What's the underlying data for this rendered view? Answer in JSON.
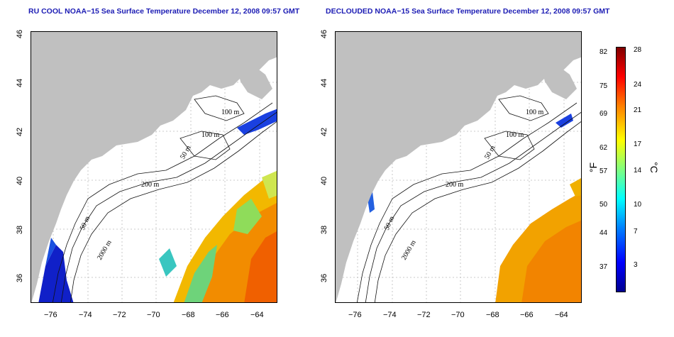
{
  "left_panel": {
    "title": "RU COOL NOAA−15 Sea Surface Temperature December 12, 2008 09:57 GMT",
    "labels": [
      "100 m",
      "100 m",
      "50 m",
      "200 m",
      "50 m",
      "2000 m"
    ]
  },
  "right_panel": {
    "title": "DECLOUDED NOAA−15 Sea Surface Temperature December 12, 2008 09:57 GMT",
    "labels": [
      "100 m",
      "100 m",
      "50 m",
      "200 m",
      "50 m",
      "2000 m"
    ]
  },
  "axes": {
    "x_ticks": [
      "−76",
      "−74",
      "−72",
      "−70",
      "−68",
      "−66",
      "−64"
    ],
    "y_ticks": [
      "46",
      "44",
      "42",
      "40",
      "38",
      "36"
    ]
  },
  "colorbar": {
    "fahrenheit_ticks": [
      "82",
      "75",
      "69",
      "62",
      "57",
      "50",
      "44",
      "37"
    ],
    "celsius_ticks": [
      "28",
      "24",
      "21",
      "17",
      "14",
      "10",
      "7",
      "3"
    ],
    "f_unit": "°F",
    "c_unit": "°C"
  },
  "colors": {
    "land": "#c0c0c0",
    "title": "#1c1cb4",
    "grid": "#bbbbbb"
  }
}
